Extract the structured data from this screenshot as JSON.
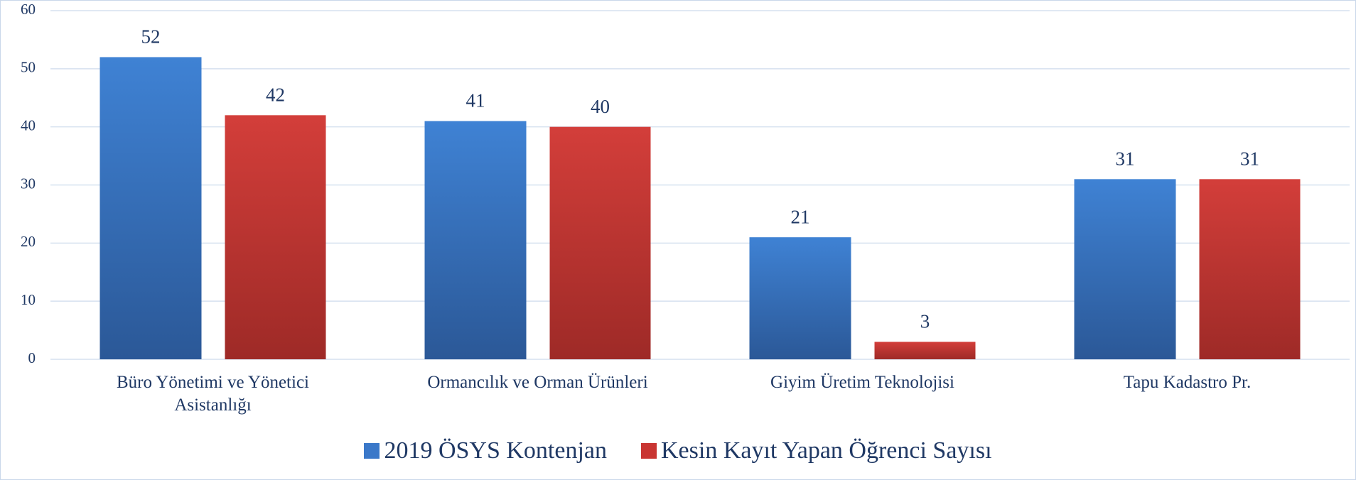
{
  "chart_data": {
    "type": "bar",
    "categories": [
      "Büro Yönetimi ve Yönetici Asistanlığı",
      "Ormancılık ve Orman Ürünleri",
      "Giyim Üretim Teknolojisi",
      "Tapu Kadastro Pr."
    ],
    "series": [
      {
        "name": "2019 ÖSYS Kontenjan",
        "color": "#3a78c9",
        "values": [
          52,
          41,
          21,
          31
        ]
      },
      {
        "name": "Kesin Kayıt Yapan Öğrenci Sayısı",
        "color": "#c93532",
        "values": [
          42,
          40,
          3,
          31
        ]
      }
    ],
    "ylim": [
      0,
      60
    ],
    "yticks": [
      0,
      10,
      20,
      30,
      40,
      50,
      60
    ],
    "grid": true,
    "legend": "bottom"
  }
}
